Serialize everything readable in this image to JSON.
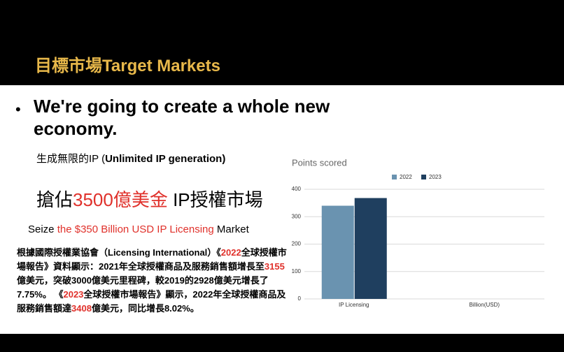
{
  "header": {
    "title": "目標市場Target Markets"
  },
  "bullet": {
    "symbol": "•",
    "text": "We're going to create a whole new economy."
  },
  "subtitle": [
    "生成無限的IP (",
    "Unlimited IP generation)"
  ],
  "headline": [
    "搶佔",
    "3500億美金",
    " IP授權市場"
  ],
  "seize": [
    "Seize ",
    "the $350 Billion USD IP Licensing",
    " Market"
  ],
  "paragraph": [
    "根據國際授權業協會（Licensing International）《",
    "2022",
    "全球授權市場報告》資料顯示：2021年全球授權商品及服務銷售額增長至",
    "3155",
    "億美元，突破3000億美元里程碑，較2019的2928億美元增長了7.75%。 《",
    "2023",
    "全球授權市場報告》顯示，2022年全球授權商品及服務銷售額達",
    "3408",
    "億美元，同比增長8.02%。"
  ],
  "chart_data": {
    "type": "bar",
    "title": "Points scored",
    "categories": [
      "IP Licensing",
      "Billion(USD)"
    ],
    "series": [
      {
        "name": "2022",
        "color": "#6a93b0",
        "values": [
          340,
          null
        ]
      },
      {
        "name": "2023",
        "color": "#1f3f5f",
        "values": [
          368,
          null
        ]
      }
    ],
    "ylim": [
      0,
      400
    ],
    "yticks": [
      0,
      100,
      200,
      300,
      400
    ],
    "grid": true,
    "legend": "top"
  }
}
